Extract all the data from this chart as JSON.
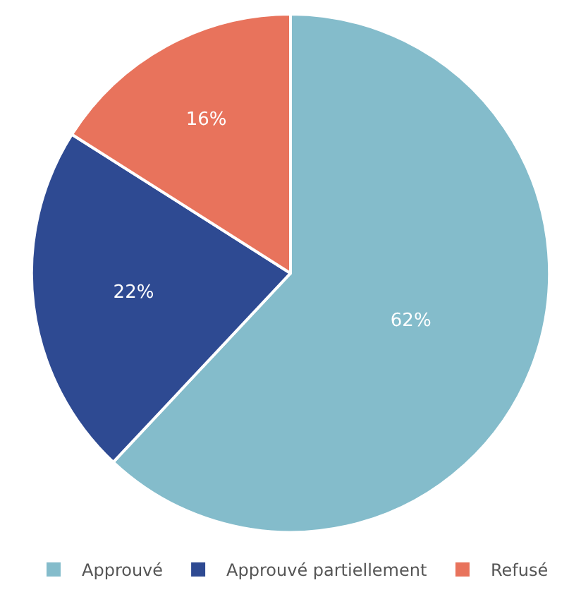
{
  "chart_data": {
    "type": "pie",
    "categories": [
      "Approuvé",
      "Approuvé partiellement",
      "Refusé"
    ],
    "values": [
      62,
      22,
      16
    ],
    "colors": [
      "#84bccb",
      "#2e4a92",
      "#e8735c"
    ],
    "value_labels": [
      "62%",
      "22%",
      "16%"
    ],
    "legend": "bottom"
  }
}
